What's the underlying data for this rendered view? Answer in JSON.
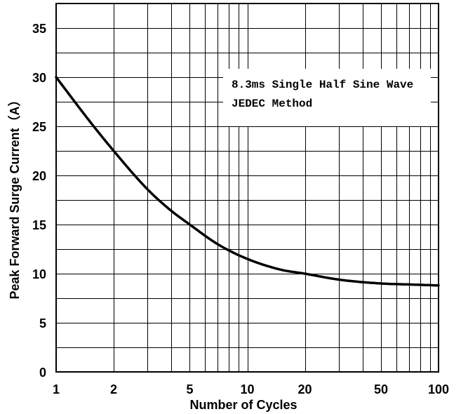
{
  "chart_data": {
    "type": "line",
    "xlabel": "Number of Cycles",
    "ylabel": "Peak Forward Surge Current（A）",
    "x_scale": "log",
    "xlim": [
      1,
      100
    ],
    "ylim": [
      0,
      37.5
    ],
    "grid": true,
    "x_ticks": [
      {
        "value": 1,
        "label": "1"
      },
      {
        "value": 2,
        "label": "2"
      },
      {
        "value": 5,
        "label": "5"
      },
      {
        "value": 10,
        "label": "10"
      },
      {
        "value": 20,
        "label": "20"
      },
      {
        "value": 50,
        "label": "50"
      },
      {
        "value": 100,
        "label": "100"
      }
    ],
    "y_ticks": [
      {
        "value": 0,
        "label": "0"
      },
      {
        "value": 5,
        "label": "5"
      },
      {
        "value": 10,
        "label": "10"
      },
      {
        "value": 15,
        "label": "15"
      },
      {
        "value": 20,
        "label": "20"
      },
      {
        "value": 25,
        "label": "25"
      },
      {
        "value": 30,
        "label": "30"
      },
      {
        "value": 35,
        "label": "35"
      }
    ],
    "annotation": [
      "8.3ms Single Half Sine Wave",
      "JEDEC Method"
    ],
    "series": [
      {
        "x": [
          1,
          1.5,
          2,
          3,
          4,
          5,
          7,
          10,
          15,
          20,
          30,
          50,
          70,
          100
        ],
        "values": [
          30,
          25.5,
          22.5,
          18.6,
          16.4,
          15.0,
          13.0,
          11.5,
          10.4,
          10.0,
          9.4,
          9.0,
          8.9,
          8.8
        ]
      }
    ]
  }
}
